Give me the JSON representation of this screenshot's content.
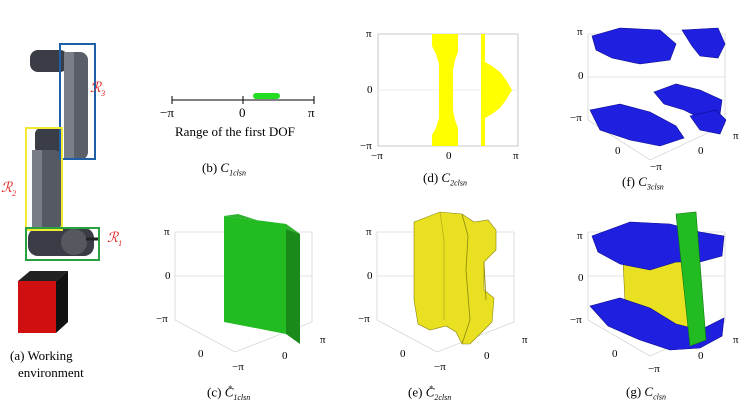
{
  "captions": {
    "a_line1": "(a) Working",
    "a_line2": "environment",
    "b": "(b) C1clsn",
    "c": "(c) C*1clsn",
    "d": "(d) C2clsn",
    "e": "(e) C*2clsn",
    "f": "(f) C3clsn",
    "g": "(g) Cclsn"
  },
  "caption_parts": {
    "b_pre": "(b) ",
    "b_sym": "C",
    "b_sub": "1clsn",
    "c_pre": "(c) ",
    "c_sym": "C",
    "c_sub": "1clsn",
    "c_sup": "*",
    "d_pre": "(d) ",
    "d_sym": "C",
    "d_sub": "2clsn",
    "e_pre": "(e) ",
    "e_sym": "C",
    "e_sub": "2clsn",
    "e_sup": "*",
    "f_pre": "(f) ",
    "f_sym": "C",
    "f_sub": "3clsn",
    "g_pre": "(g) ",
    "g_sym": "C",
    "g_sub": "clsn"
  },
  "robot_labels": {
    "r1": "R1",
    "r2": "R2",
    "r3": "R3",
    "r1_sym": "ℛ",
    "r1_sub": "1",
    "r2_sub": "2",
    "r3_sub": "3"
  },
  "range_b": {
    "label": "Range of the first DOF",
    "tick_min": "−π",
    "tick_mid": "0",
    "tick_max": "π"
  },
  "ticks": {
    "pi": "π",
    "neg_pi": "−π",
    "zero": "0"
  },
  "colors": {
    "yellow": "#ffff00",
    "green": "#22bb22",
    "blue": "#1f1fe0",
    "red": "#d01010",
    "label_red": "#e02020",
    "box_blue": "#1f5fa8",
    "box_yellow": "#f2ea30",
    "box_green": "#2aa040"
  }
}
